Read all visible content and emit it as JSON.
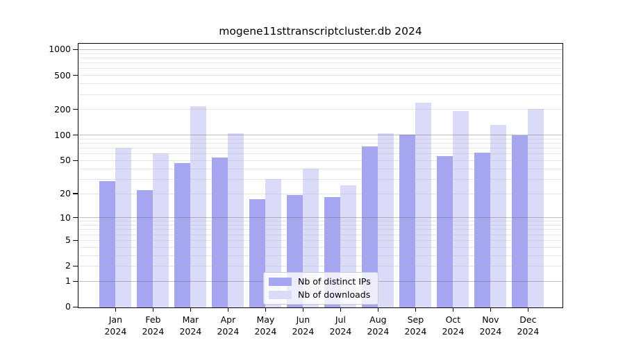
{
  "chart_data": {
    "type": "bar",
    "title": "mogene11sttranscriptcluster.db 2024",
    "categories": [
      "Jan",
      "Feb",
      "Mar",
      "Apr",
      "May",
      "Jun",
      "Jul",
      "Aug",
      "Sep",
      "Oct",
      "Nov",
      "Dec"
    ],
    "category_year": "2024",
    "series": [
      {
        "name": "Nb of distinct IPs",
        "color": "#a5a5f2",
        "values": [
          28,
          22,
          46,
          54,
          17,
          19,
          18,
          73,
          100,
          56,
          62,
          98
        ]
      },
      {
        "name": "Nb of downloads",
        "color": "#dadaf9",
        "values": [
          70,
          60,
          215,
          105,
          30,
          40,
          25,
          105,
          240,
          190,
          130,
          200
        ]
      }
    ],
    "y_scale": "log10(value+1)",
    "ylim": [
      0,
      1000
    ],
    "y_ticks": [
      1000,
      500,
      200,
      100,
      50,
      20,
      10,
      5,
      2,
      1,
      0
    ],
    "y_major_gridlines": [
      1,
      10,
      100,
      1000
    ],
    "y_minor_gridlines": [
      2,
      3,
      4,
      5,
      6,
      7,
      8,
      9,
      20,
      30,
      40,
      50,
      60,
      70,
      80,
      90,
      200,
      300,
      400,
      500,
      600,
      700,
      800,
      900
    ],
    "xlabel": "",
    "ylabel": "",
    "grid": "on, drawn over bars",
    "legend_position": "bottom-center"
  },
  "colors": {
    "background": "#ffffff",
    "axis": "#000000",
    "major_grid": "#bcbcbc",
    "minor_grid": "#e7e7e7",
    "legend_border": "#cccccc",
    "series_ips": "#a5a5f2",
    "series_downloads": "#dadaf9"
  }
}
